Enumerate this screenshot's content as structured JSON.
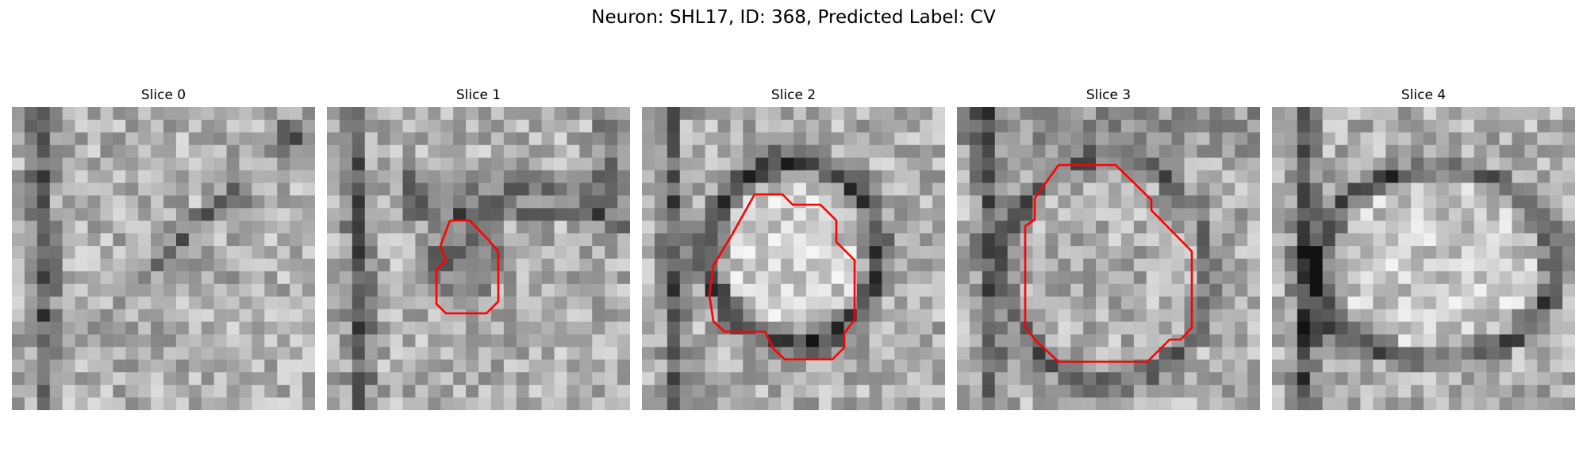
{
  "figure": {
    "title": "Neuron: SHL17, ID: 368, Predicted Label: CV"
  },
  "panels": [
    {
      "title": "Slice 0",
      "has_outline": false
    },
    {
      "title": "Slice 1",
      "has_outline": true
    },
    {
      "title": "Slice 2",
      "has_outline": true
    },
    {
      "title": "Slice 3",
      "has_outline": true
    },
    {
      "title": "Slice 4",
      "has_outline": false
    }
  ],
  "colors": {
    "outline": "#ff0000",
    "background": "#ffffff"
  },
  "image_style": "grayscale electron-microscopy patch with blocky pixels"
}
